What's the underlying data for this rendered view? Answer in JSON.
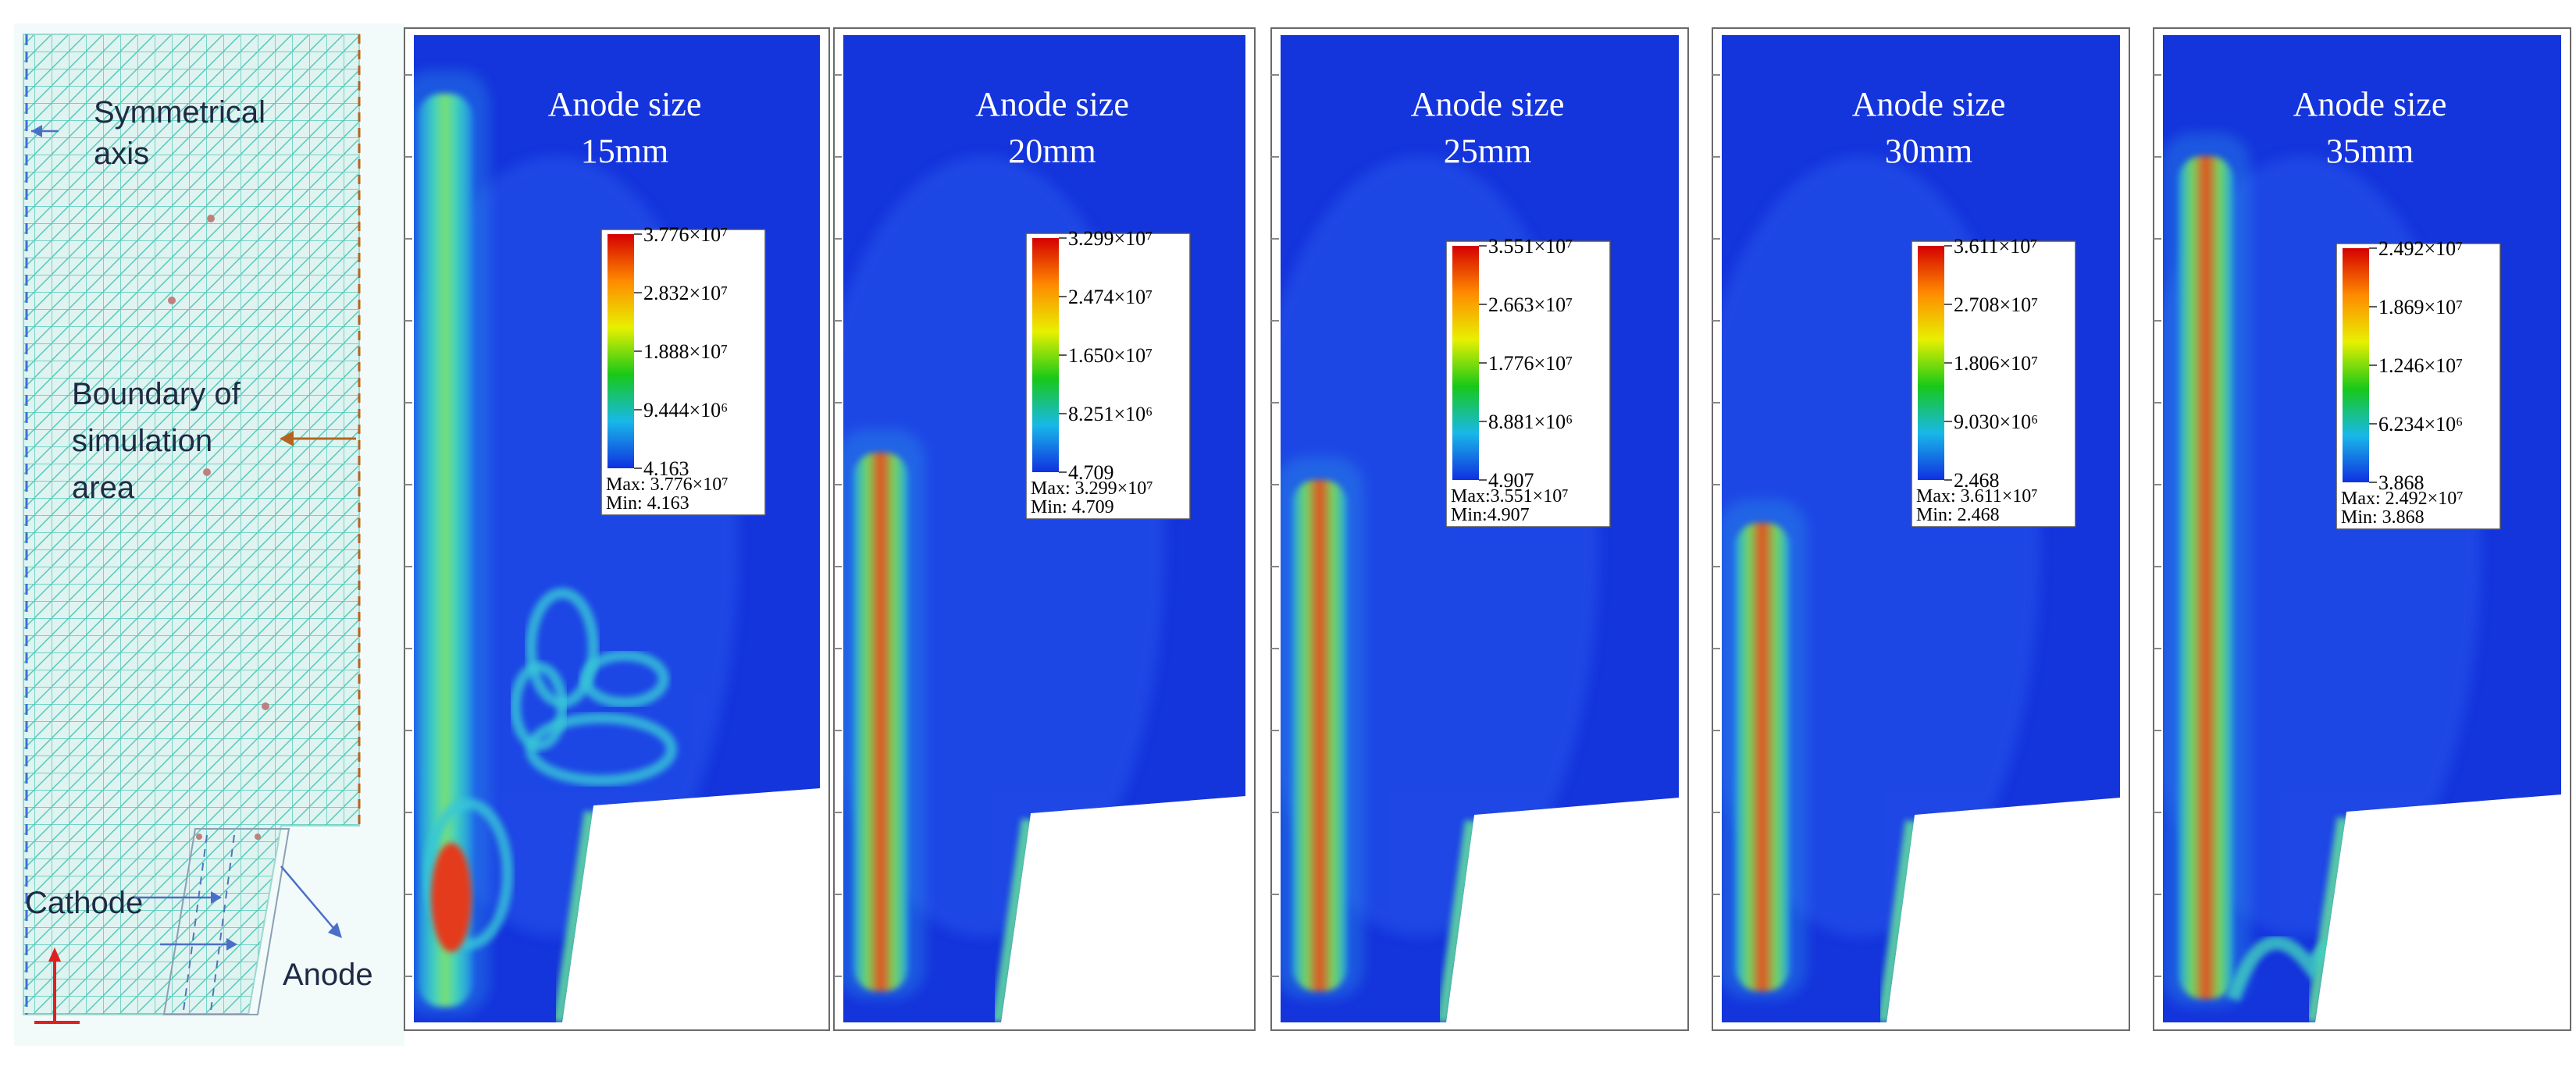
{
  "mesh_panel": {
    "labels": {
      "symmetrical_axis": [
        "Symmetrical",
        "axis"
      ],
      "boundary": [
        "Boundary of",
        "simulation",
        "area"
      ],
      "cathode": "Cathode",
      "anode": "Anode"
    }
  },
  "panels": [
    {
      "title_line1": "Anode size",
      "title_line2": "15mm",
      "legend": {
        "ticks": [
          "3.776×10⁷",
          "2.832×10⁷",
          "1.888×10⁷",
          "9.444×10⁶",
          "4.163"
        ],
        "max": "Max: 3.776×10⁷",
        "min": "Min: 4.163"
      }
    },
    {
      "title_line1": "Anode size",
      "title_line2": "20mm",
      "legend": {
        "ticks": [
          "3.299×10⁷",
          "2.474×10⁷",
          "1.650×10⁷",
          "8.251×10⁶",
          "4.709"
        ],
        "max": "Max: 3.299×10⁷",
        "min": "Min: 4.709"
      }
    },
    {
      "title_line1": "Anode size",
      "title_line2": "25mm",
      "legend": {
        "ticks": [
          "3.551×10⁷",
          "2.663×10⁷",
          "1.776×10⁷",
          "8.881×10⁶",
          "4.907"
        ],
        "max": "Max:3.551×10⁷",
        "min": "Min:4.907"
      }
    },
    {
      "title_line1": "Anode size",
      "title_line2": "30mm",
      "legend": {
        "ticks": [
          "3.611×10⁷",
          "2.708×10⁷",
          "1.806×10⁷",
          "9.030×10⁶",
          "2.468"
        ],
        "max": "Max: 3.611×10⁷",
        "min": "Min: 2.468"
      }
    },
    {
      "title_line1": "Anode size",
      "title_line2": "35mm",
      "legend": {
        "ticks": [
          "2.492×10⁷",
          "1.869×10⁷",
          "1.246×10⁷",
          "6.234×10⁶",
          "3.868"
        ],
        "max": "Max: 2.492×10⁷",
        "min": "Min: 3.868"
      }
    }
  ],
  "colors": {
    "field_background": "#1434dc",
    "mesh_background": "#dff3f0",
    "mesh_lines": "#4fc8b8",
    "boundary": "#b5651d",
    "axis_line": "#3a6fd8",
    "hot_band": [
      "#d82a1a",
      "#f5a31a",
      "#e8e82a",
      "#5fd05f",
      "#2fb8e0"
    ]
  }
}
